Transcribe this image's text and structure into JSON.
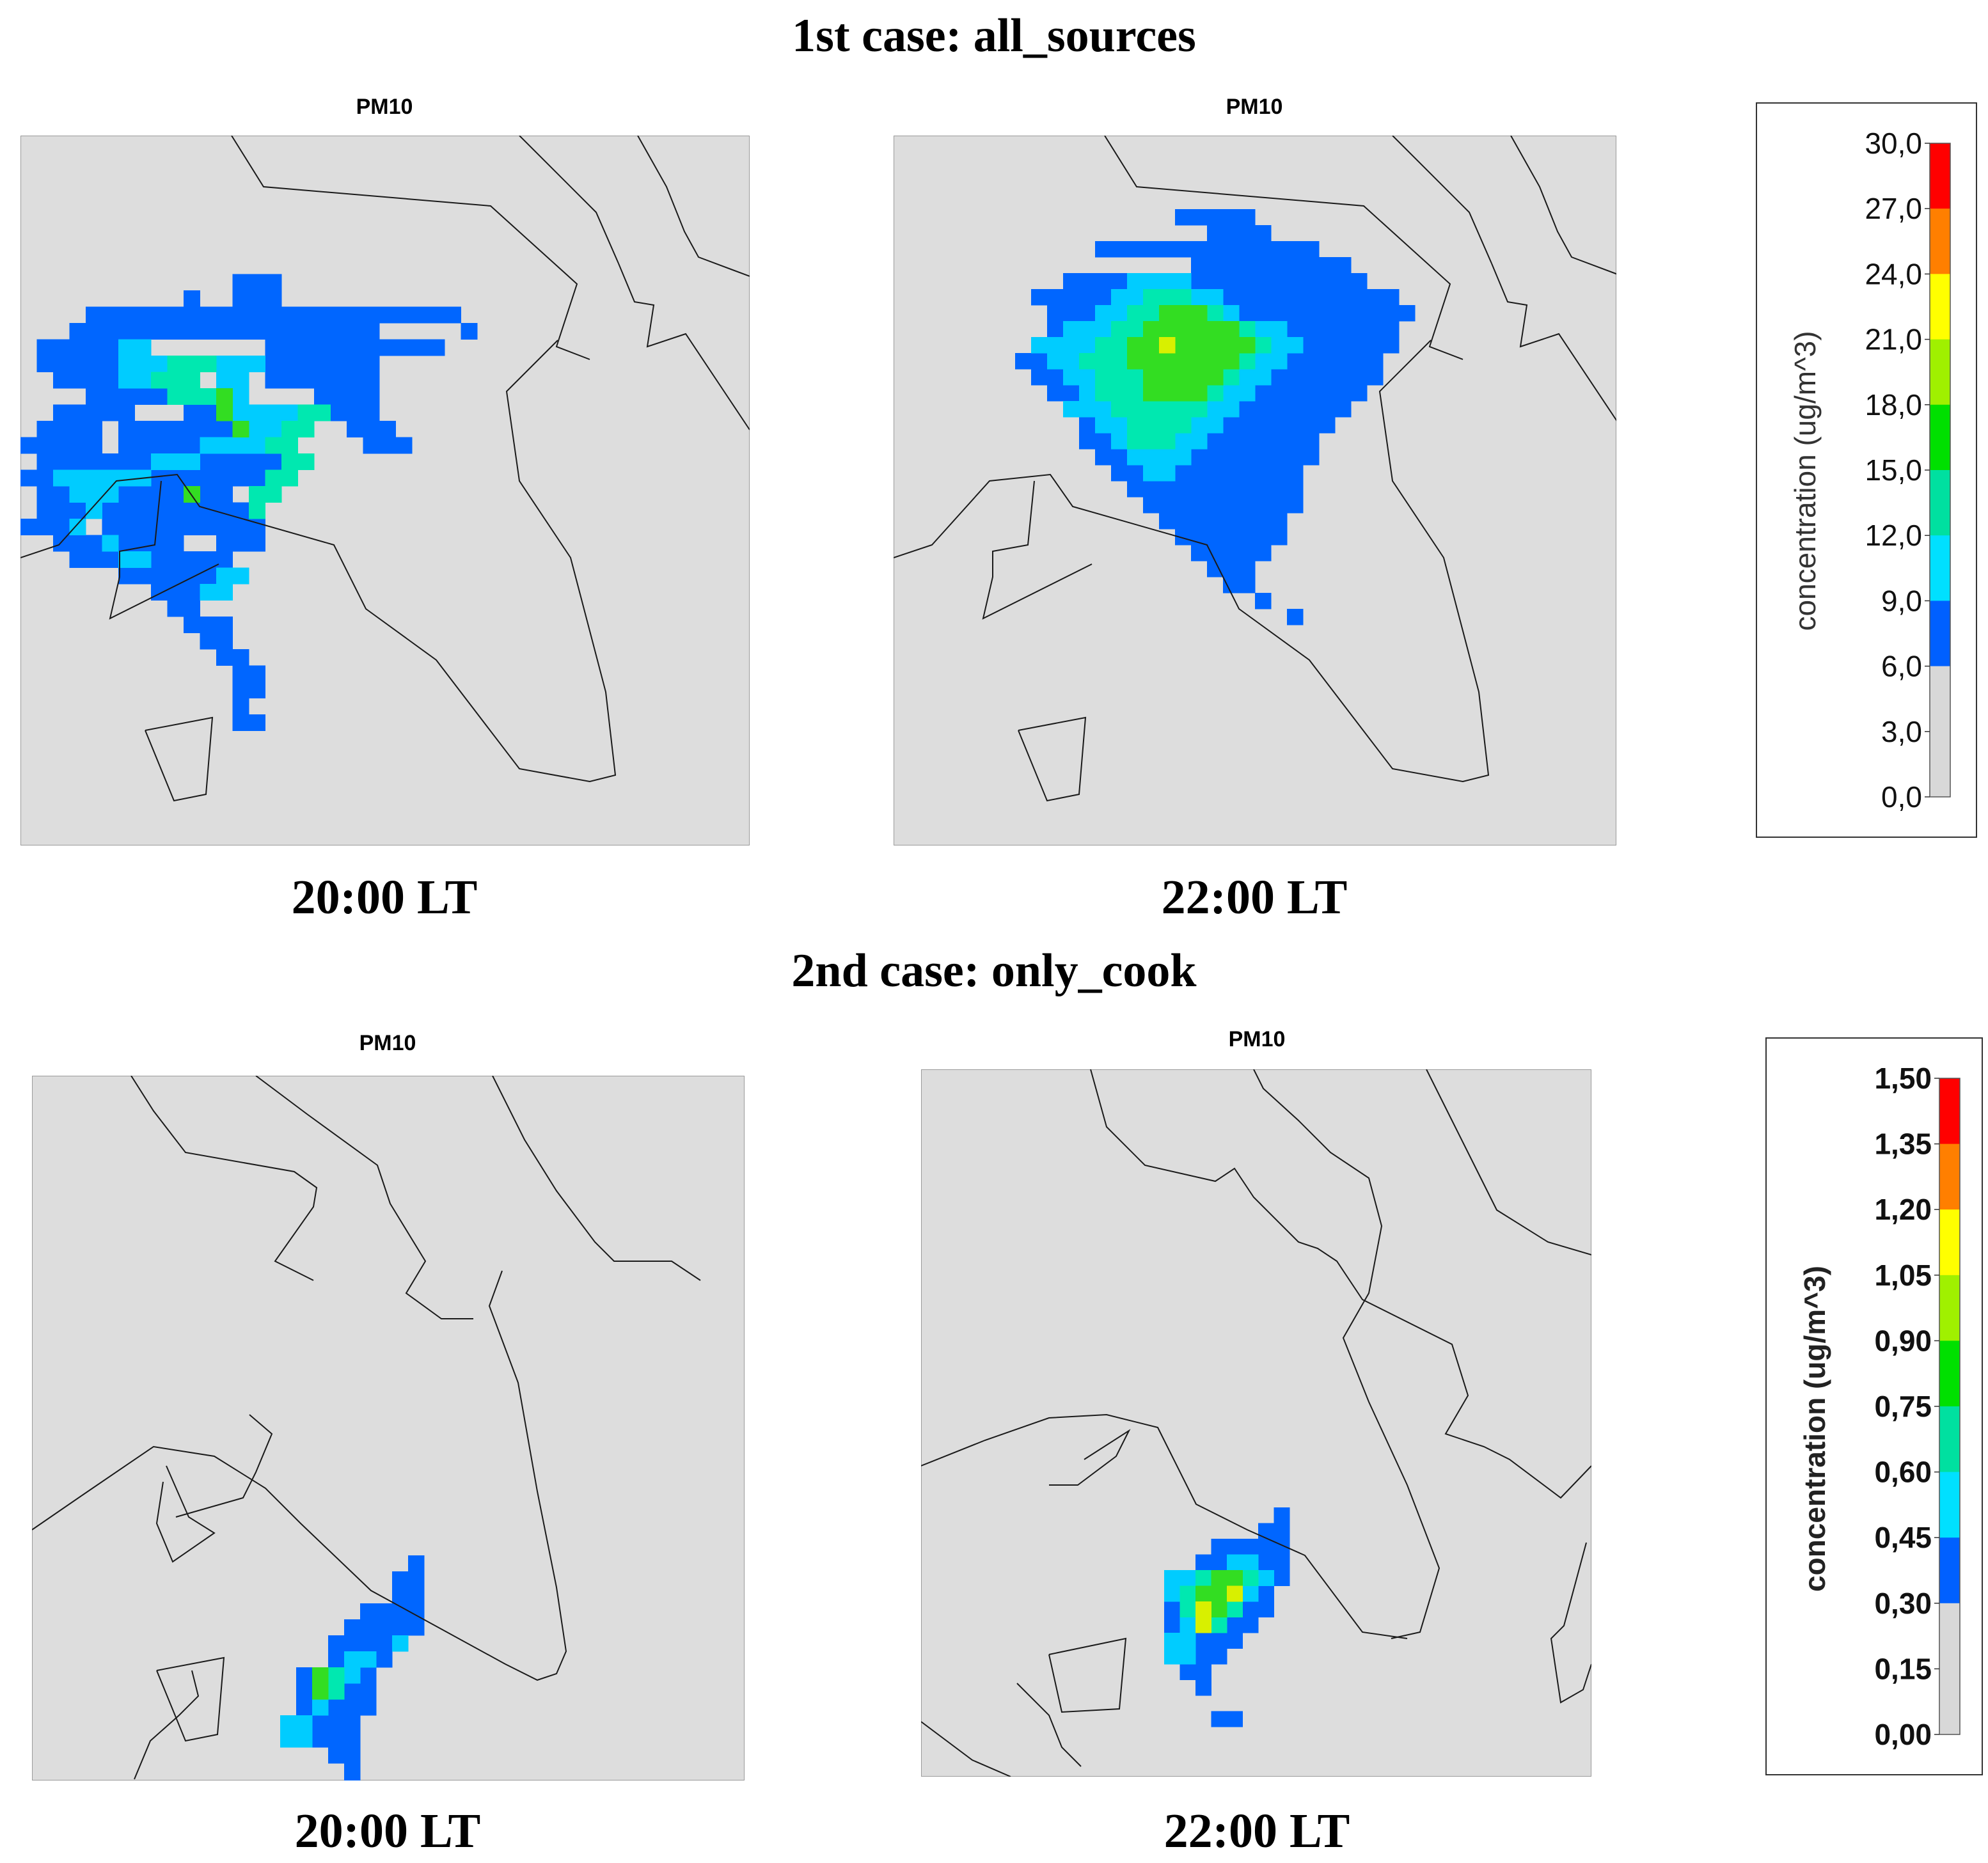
{
  "figure": {
    "case1_title": "1st case: all_sources",
    "case2_title": "2nd case: only_cook"
  },
  "panels": [
    {
      "key": "a",
      "case": 1,
      "title": "PM10",
      "time": "20:00 LT",
      "basemap": "m1",
      "cells": {
        "blue": [
          [
            3,
            13,
            15
          ],
          [
            4,
            10,
            10
          ],
          [
            4,
            13,
            15
          ],
          [
            5,
            4,
            26
          ],
          [
            6,
            3,
            21
          ],
          [
            6,
            27,
            27
          ],
          [
            7,
            1,
            5
          ],
          [
            7,
            15,
            25
          ],
          [
            8,
            1,
            11
          ],
          [
            8,
            15,
            21
          ],
          [
            9,
            2,
            5
          ],
          [
            9,
            15,
            21
          ],
          [
            10,
            4,
            8
          ],
          [
            10,
            18,
            21
          ],
          [
            11,
            2,
            6
          ],
          [
            11,
            10,
            16
          ],
          [
            11,
            19,
            21
          ],
          [
            12,
            1,
            4
          ],
          [
            12,
            6,
            13
          ],
          [
            12,
            20,
            22
          ],
          [
            13,
            0,
            4
          ],
          [
            13,
            6,
            10
          ],
          [
            13,
            21,
            23
          ],
          [
            14,
            1,
            7
          ],
          [
            14,
            11,
            15
          ],
          [
            15,
            0,
            1
          ],
          [
            15,
            8,
            14
          ],
          [
            16,
            1,
            2
          ],
          [
            16,
            6,
            12
          ],
          [
            17,
            1,
            3
          ],
          [
            17,
            5,
            14
          ],
          [
            18,
            0,
            2
          ],
          [
            18,
            5,
            14
          ],
          [
            19,
            2,
            4
          ],
          [
            19,
            6,
            9
          ],
          [
            19,
            12,
            14
          ],
          [
            20,
            3,
            5
          ],
          [
            20,
            8,
            12
          ],
          [
            21,
            6,
            11
          ],
          [
            22,
            8,
            10
          ],
          [
            23,
            9,
            10
          ],
          [
            24,
            10,
            12
          ],
          [
            25,
            11,
            12
          ],
          [
            26,
            12,
            13
          ],
          [
            27,
            13,
            14
          ],
          [
            28,
            13,
            14
          ],
          [
            29,
            13,
            13
          ],
          [
            30,
            13,
            14
          ]
        ],
        "cyan": [
          [
            7,
            6,
            7
          ],
          [
            8,
            6,
            8
          ],
          [
            9,
            6,
            7
          ],
          [
            8,
            12,
            14
          ],
          [
            9,
            12,
            13
          ],
          [
            10,
            12,
            13
          ],
          [
            11,
            13,
            16
          ],
          [
            12,
            14,
            15
          ],
          [
            13,
            11,
            14
          ],
          [
            14,
            8,
            10
          ],
          [
            15,
            2,
            7
          ],
          [
            16,
            3,
            5
          ],
          [
            17,
            4,
            4
          ],
          [
            18,
            3,
            3
          ],
          [
            19,
            5,
            5
          ],
          [
            20,
            6,
            7
          ],
          [
            21,
            12,
            13
          ],
          [
            22,
            11,
            12
          ]
        ],
        "teal": [
          [
            8,
            9,
            11
          ],
          [
            9,
            8,
            10
          ],
          [
            10,
            9,
            11
          ],
          [
            11,
            17,
            18
          ],
          [
            12,
            16,
            17
          ],
          [
            13,
            15,
            16
          ],
          [
            14,
            16,
            17
          ],
          [
            15,
            15,
            16
          ],
          [
            16,
            14,
            15
          ],
          [
            17,
            14,
            14
          ]
        ],
        "green": [
          [
            10,
            12,
            12
          ],
          [
            11,
            12,
            12
          ],
          [
            12,
            13,
            13
          ],
          [
            16,
            10,
            10
          ]
        ],
        "yellow": []
      }
    },
    {
      "key": "b",
      "case": 1,
      "title": "PM10",
      "time": "22:00 LT",
      "basemap": "m1",
      "cells": {
        "blue": [
          [
            3,
            14,
            18
          ],
          [
            4,
            16,
            19
          ],
          [
            5,
            9,
            22
          ],
          [
            6,
            15,
            24
          ],
          [
            7,
            7,
            25
          ],
          [
            8,
            5,
            27
          ],
          [
            9,
            6,
            28
          ],
          [
            10,
            6,
            27
          ],
          [
            11,
            8,
            27
          ],
          [
            12,
            4,
            26
          ],
          [
            13,
            5,
            26
          ],
          [
            14,
            6,
            25
          ],
          [
            15,
            7,
            24
          ],
          [
            16,
            8,
            23
          ],
          [
            17,
            8,
            22
          ],
          [
            18,
            9,
            22
          ],
          [
            19,
            10,
            21
          ],
          [
            20,
            11,
            21
          ],
          [
            21,
            12,
            21
          ],
          [
            22,
            13,
            20
          ],
          [
            23,
            14,
            20
          ],
          [
            24,
            15,
            19
          ],
          [
            25,
            16,
            18
          ],
          [
            26,
            17,
            18
          ],
          [
            27,
            19,
            19
          ],
          [
            28,
            21,
            21
          ]
        ],
        "cyan": [
          [
            7,
            11,
            14
          ],
          [
            8,
            10,
            16
          ],
          [
            9,
            9,
            17
          ],
          [
            10,
            7,
            20
          ],
          [
            11,
            5,
            21
          ],
          [
            12,
            6,
            20
          ],
          [
            13,
            7,
            19
          ],
          [
            14,
            8,
            18
          ],
          [
            15,
            7,
            17
          ],
          [
            16,
            9,
            16
          ],
          [
            17,
            10,
            15
          ],
          [
            18,
            11,
            14
          ],
          [
            19,
            12,
            13
          ]
        ],
        "teal": [
          [
            8,
            12,
            14
          ],
          [
            9,
            11,
            16
          ],
          [
            10,
            10,
            18
          ],
          [
            11,
            9,
            19
          ],
          [
            12,
            8,
            18
          ],
          [
            13,
            9,
            17
          ],
          [
            14,
            9,
            16
          ],
          [
            15,
            10,
            15
          ],
          [
            16,
            11,
            14
          ],
          [
            17,
            11,
            13
          ]
        ],
        "green": [
          [
            9,
            13,
            15
          ],
          [
            10,
            12,
            17
          ],
          [
            11,
            11,
            18
          ],
          [
            12,
            11,
            17
          ],
          [
            13,
            12,
            16
          ],
          [
            14,
            12,
            15
          ]
        ],
        "yellow": [
          [
            11,
            13,
            13
          ]
        ]
      }
    },
    {
      "key": "c",
      "case": 2,
      "title": "PM10",
      "time": "20:00 LT",
      "basemap": "m2",
      "cells": {
        "blue": [
          [
            0,
            8,
            8
          ],
          [
            1,
            7,
            8
          ],
          [
            2,
            7,
            8
          ],
          [
            3,
            5,
            8
          ],
          [
            4,
            4,
            8
          ],
          [
            5,
            3,
            6
          ],
          [
            6,
            3,
            6
          ],
          [
            7,
            1,
            5
          ],
          [
            8,
            1,
            5
          ],
          [
            9,
            1,
            5
          ],
          [
            10,
            1,
            4
          ],
          [
            11,
            1,
            4
          ],
          [
            12,
            3,
            4
          ],
          [
            13,
            4,
            4
          ],
          [
            14,
            4,
            4
          ]
        ],
        "cyan": [
          [
            5,
            7,
            7
          ],
          [
            6,
            4,
            5
          ],
          [
            7,
            3,
            4
          ],
          [
            8,
            2,
            3
          ],
          [
            9,
            2,
            2
          ],
          [
            10,
            0,
            1
          ],
          [
            11,
            0,
            1
          ]
        ],
        "teal": [
          [
            7,
            3,
            3
          ],
          [
            8,
            3,
            3
          ]
        ],
        "green": [
          [
            7,
            2,
            2
          ],
          [
            8,
            2,
            2
          ]
        ],
        "yellow": []
      }
    },
    {
      "key": "d",
      "case": 2,
      "title": "PM10",
      "time": "22:00 LT",
      "basemap": "m2",
      "cells": {
        "blue": [
          [
            0,
            7,
            7
          ],
          [
            1,
            6,
            7
          ],
          [
            2,
            3,
            7
          ],
          [
            3,
            2,
            7
          ],
          [
            4,
            1,
            7
          ],
          [
            5,
            0,
            6
          ],
          [
            6,
            0,
            6
          ],
          [
            7,
            0,
            5
          ],
          [
            8,
            0,
            4
          ],
          [
            9,
            0,
            3
          ],
          [
            10,
            1,
            2
          ],
          [
            11,
            2,
            2
          ],
          [
            13,
            3,
            4
          ]
        ],
        "cyan": [
          [
            3,
            4,
            5
          ],
          [
            4,
            0,
            6
          ],
          [
            5,
            0,
            5
          ],
          [
            6,
            2,
            4
          ],
          [
            7,
            1,
            3
          ],
          [
            8,
            0,
            1
          ],
          [
            9,
            0,
            1
          ]
        ],
        "teal": [
          [
            4,
            2,
            5
          ],
          [
            5,
            1,
            4
          ],
          [
            6,
            1,
            4
          ],
          [
            7,
            2,
            3
          ]
        ],
        "green": [
          [
            4,
            3,
            4
          ],
          [
            5,
            2,
            4
          ],
          [
            6,
            2,
            3
          ],
          [
            7,
            2,
            2
          ]
        ],
        "yellow": [
          [
            6,
            2,
            2
          ],
          [
            7,
            2,
            2
          ],
          [
            5,
            4,
            4
          ]
        ]
      }
    }
  ],
  "legend1": {
    "title": "concentration (ug/m^3)",
    "ticks": [
      "30,0",
      "27,0",
      "24,0",
      "21,0",
      "18,0",
      "15,0",
      "12,0",
      "9,0",
      "6,0",
      "3,0",
      "0,0"
    ],
    "colors": [
      "#ff0000",
      "#ff7f00",
      "#ffff00",
      "#a0f000",
      "#00e000",
      "#00e0a0",
      "#00e0ff",
      "#0060ff",
      "#d8d8d8"
    ]
  },
  "legend2": {
    "title": "concentration (ug/m^3)",
    "ticks": [
      "1,50",
      "1,35",
      "1,20",
      "1,05",
      "0,90",
      "0,75",
      "0,60",
      "0,45",
      "0,30",
      "0,15",
      "0,00"
    ],
    "colors": [
      "#ff0000",
      "#ff7f00",
      "#ffff00",
      "#a0f000",
      "#00e000",
      "#00e0a0",
      "#00e0ff",
      "#0060ff",
      "#d8d8d8"
    ]
  },
  "palette": {
    "blue": "#0066ff",
    "cyan": "#00ccff",
    "teal": "#00e8b0",
    "green": "#33dd22",
    "yellow": "#d8f000"
  }
}
